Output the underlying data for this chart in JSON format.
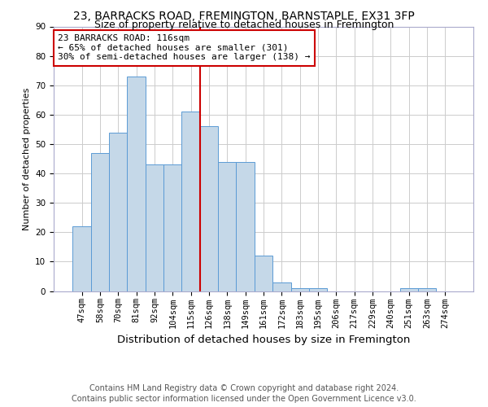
{
  "title": "23, BARRACKS ROAD, FREMINGTON, BARNSTAPLE, EX31 3FP",
  "subtitle": "Size of property relative to detached houses in Fremington",
  "xlabel": "Distribution of detached houses by size in Fremington",
  "ylabel": "Number of detached properties",
  "bin_labels": [
    "47sqm",
    "58sqm",
    "70sqm",
    "81sqm",
    "92sqm",
    "104sqm",
    "115sqm",
    "126sqm",
    "138sqm",
    "149sqm",
    "161sqm",
    "172sqm",
    "183sqm",
    "195sqm",
    "206sqm",
    "217sqm",
    "229sqm",
    "240sqm",
    "251sqm",
    "263sqm",
    "274sqm"
  ],
  "bar_values": [
    22,
    47,
    54,
    73,
    43,
    43,
    61,
    56,
    44,
    44,
    12,
    3,
    1,
    1,
    0,
    0,
    0,
    0,
    1,
    1,
    0
  ],
  "bar_color": "#c5d8e8",
  "bar_edgecolor": "#5b9bd5",
  "vline_x_index": 6,
  "vline_color": "#cc0000",
  "annotation_text": "23 BARRACKS ROAD: 116sqm\n← 65% of detached houses are smaller (301)\n30% of semi-detached houses are larger (138) →",
  "annotation_box_color": "#ffffff",
  "annotation_box_edgecolor": "#cc0000",
  "ylim": [
    0,
    90
  ],
  "yticks": [
    0,
    10,
    20,
    30,
    40,
    50,
    60,
    70,
    80,
    90
  ],
  "footer_line1": "Contains HM Land Registry data © Crown copyright and database right 2024.",
  "footer_line2": "Contains public sector information licensed under the Open Government Licence v3.0.",
  "bg_color": "#ffffff",
  "grid_color": "#cccccc",
  "title_fontsize": 10,
  "subtitle_fontsize": 9,
  "xlabel_fontsize": 9.5,
  "ylabel_fontsize": 8,
  "tick_fontsize": 7.5,
  "annotation_fontsize": 8,
  "footer_fontsize": 7
}
